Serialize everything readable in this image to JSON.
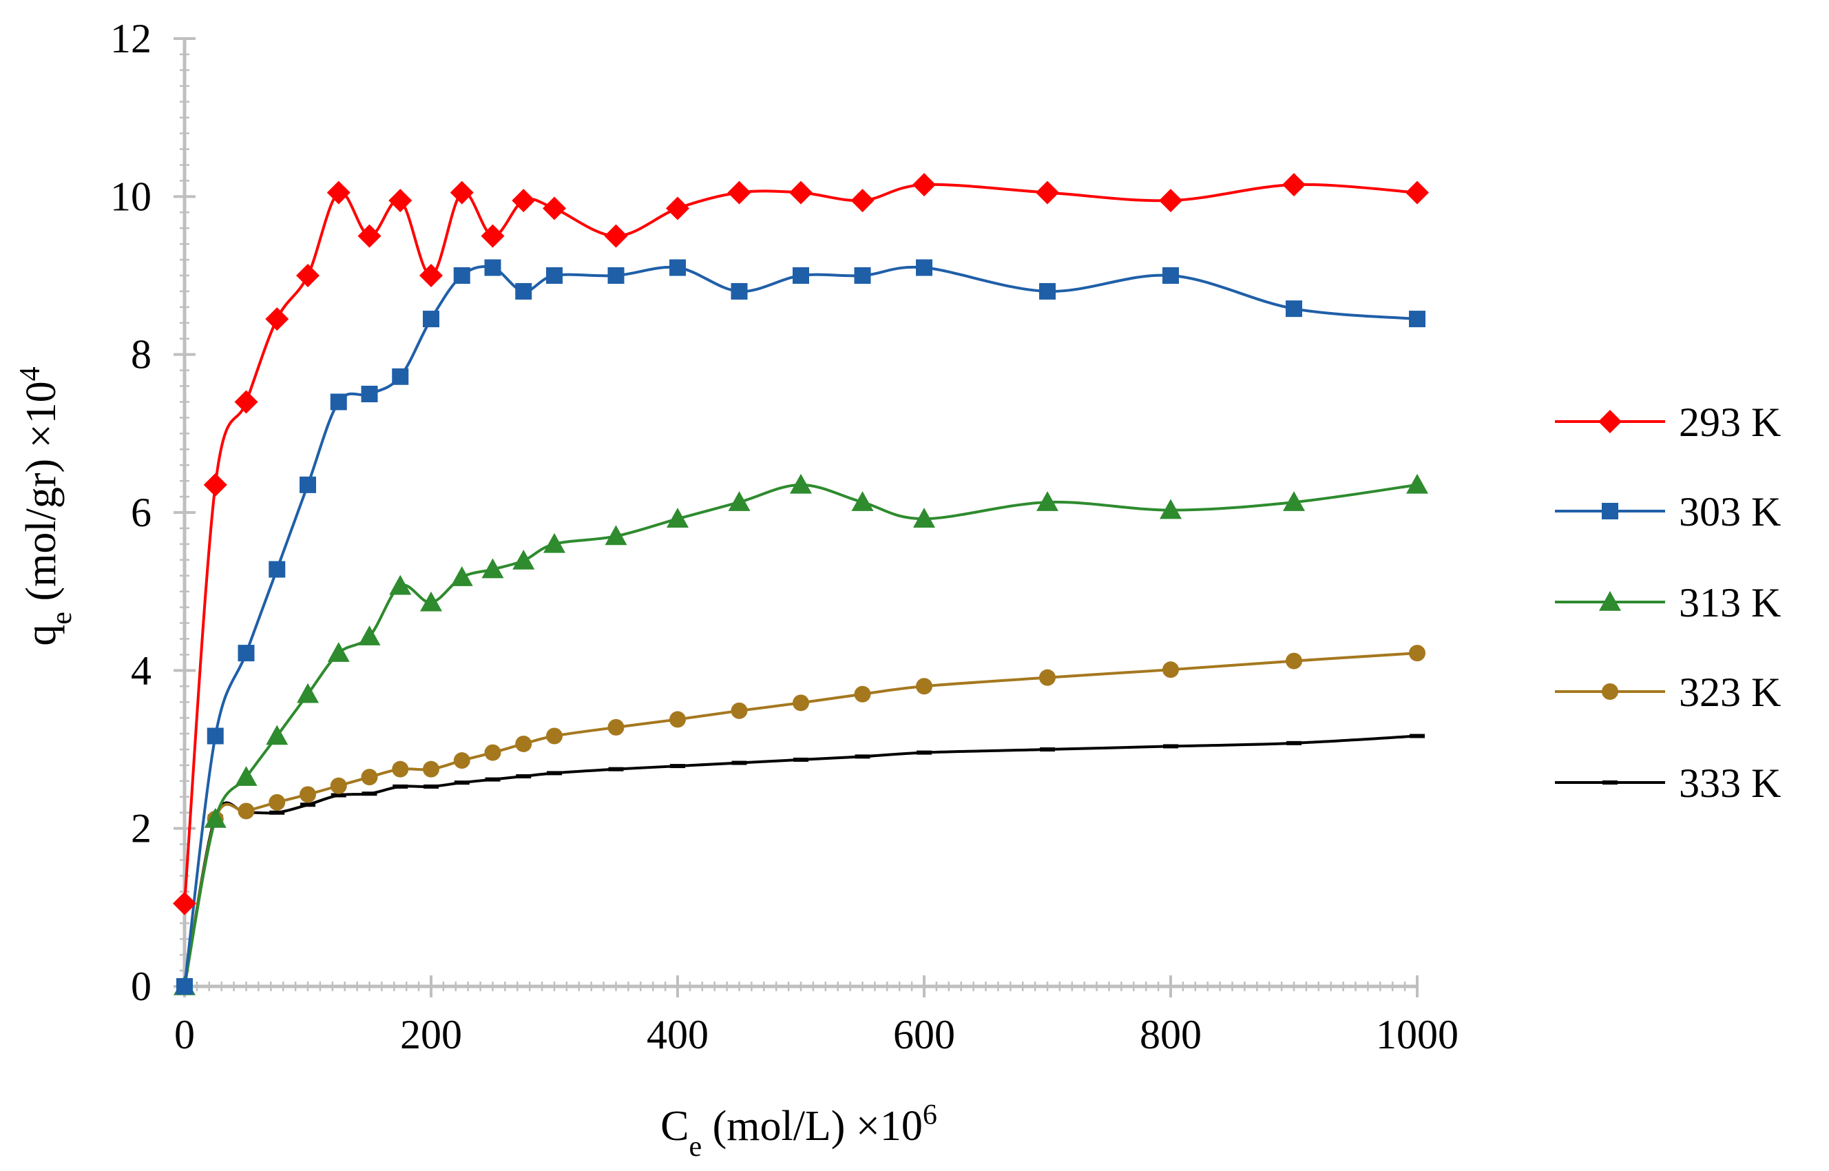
{
  "chart_data": {
    "type": "line",
    "title": "",
    "xlabel": {
      "base": "C",
      "sub": "e",
      "rest": " (mol/L) ×10",
      "sup": "6"
    },
    "ylabel": {
      "base": "q",
      "sub": "e",
      "rest": " (mol/gr) ×10",
      "sup": "4"
    },
    "xlim": [
      0,
      1000
    ],
    "ylim": [
      0,
      12
    ],
    "xticks": [
      0,
      200,
      400,
      600,
      800,
      1000
    ],
    "yticks": [
      0,
      2,
      4,
      6,
      8,
      10,
      12
    ],
    "x": [
      0,
      25,
      50,
      75,
      100,
      125,
      150,
      175,
      200,
      225,
      250,
      275,
      300,
      350,
      400,
      450,
      500,
      550,
      600,
      700,
      800,
      900,
      1000
    ],
    "legend_position": "right",
    "series": [
      {
        "name": "293 K",
        "color": "#ff0000",
        "marker": "diamond",
        "x": [
          0,
          25,
          50,
          75,
          100,
          125,
          150,
          175,
          200,
          225,
          250,
          275,
          300,
          350,
          400,
          450,
          500,
          550,
          600,
          700,
          800,
          900,
          1000
        ],
        "values": [
          1.05,
          6.35,
          7.4,
          8.45,
          9.0,
          10.05,
          9.5,
          9.95,
          9.0,
          10.05,
          9.5,
          9.95,
          9.85,
          9.5,
          9.85,
          10.05,
          10.05,
          9.95,
          10.15,
          10.05,
          9.95,
          10.15,
          10.05
        ]
      },
      {
        "name": "303 K",
        "color": "#1f5fa8",
        "marker": "square",
        "x": [
          0,
          25,
          50,
          75,
          100,
          125,
          150,
          175,
          200,
          225,
          250,
          275,
          300,
          350,
          400,
          450,
          500,
          550,
          600,
          700,
          800,
          900,
          1000
        ],
        "values": [
          0,
          3.17,
          4.22,
          5.28,
          6.35,
          7.4,
          7.5,
          7.72,
          8.45,
          9.0,
          9.1,
          8.8,
          9.0,
          9.0,
          9.1,
          8.8,
          9.0,
          9.0,
          9.1,
          8.8,
          9.0,
          8.58,
          8.45
        ]
      },
      {
        "name": "313 K",
        "color": "#2e8b2e",
        "marker": "triangle",
        "x": [
          0,
          25,
          50,
          75,
          100,
          125,
          150,
          175,
          200,
          225,
          250,
          275,
          300,
          350,
          400,
          450,
          500,
          550,
          600,
          700,
          800,
          900,
          1000
        ],
        "values": [
          0,
          2.12,
          2.65,
          3.17,
          3.7,
          4.22,
          4.43,
          5.07,
          4.86,
          5.18,
          5.28,
          5.39,
          5.6,
          5.7,
          5.92,
          6.13,
          6.35,
          6.13,
          5.92,
          6.13,
          6.03,
          6.13,
          6.35
        ]
      },
      {
        "name": "323 K",
        "color": "#a5781e",
        "marker": "circle",
        "x": [
          0,
          25,
          50,
          75,
          100,
          125,
          150,
          175,
          200,
          225,
          250,
          275,
          300,
          350,
          400,
          450,
          500,
          550,
          600,
          700,
          800,
          900,
          1000
        ],
        "values": [
          0,
          2.12,
          2.22,
          2.33,
          2.43,
          2.54,
          2.65,
          2.75,
          2.75,
          2.86,
          2.96,
          3.07,
          3.17,
          3.28,
          3.38,
          3.49,
          3.59,
          3.7,
          3.8,
          3.91,
          4.01,
          4.12,
          4.22
        ]
      },
      {
        "name": "333 K",
        "color": "#000000",
        "marker": "dash",
        "x": [
          0,
          25,
          50,
          75,
          100,
          125,
          150,
          175,
          200,
          225,
          250,
          275,
          300,
          350,
          400,
          450,
          500,
          550,
          600,
          700,
          800,
          900,
          1000
        ],
        "values": [
          0,
          2.15,
          2.2,
          2.2,
          2.3,
          2.42,
          2.44,
          2.53,
          2.53,
          2.58,
          2.62,
          2.66,
          2.7,
          2.75,
          2.79,
          2.83,
          2.87,
          2.91,
          2.96,
          3.0,
          3.04,
          3.08,
          3.17
        ]
      }
    ]
  }
}
